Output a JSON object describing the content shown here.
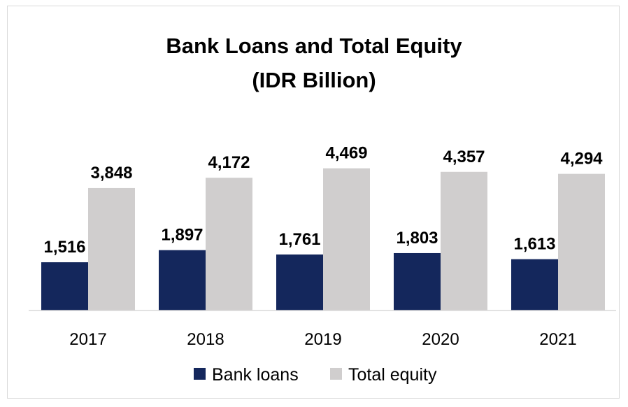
{
  "chart_data": {
    "type": "bar",
    "title": "Bank Loans and Total Equity",
    "subtitle": "(IDR Billion)",
    "categories": [
      "2017",
      "2018",
      "2019",
      "2020",
      "2021"
    ],
    "series": [
      {
        "name": "Bank loans",
        "values": [
          1516,
          1897,
          1761,
          1803,
          1613
        ],
        "labels": [
          "1,516",
          "1,897",
          "1,761",
          "1,803",
          "1,613"
        ],
        "color": "#14275c"
      },
      {
        "name": "Total equity",
        "values": [
          3848,
          4172,
          4469,
          4357,
          4294
        ],
        "labels": [
          "3,848",
          "4,172",
          "4,469",
          "4,357",
          "4,294"
        ],
        "color": "#d0cece"
      }
    ],
    "ylim": [
      0,
      5000
    ],
    "grid": false,
    "legend": "bottom",
    "data_labels": true
  }
}
